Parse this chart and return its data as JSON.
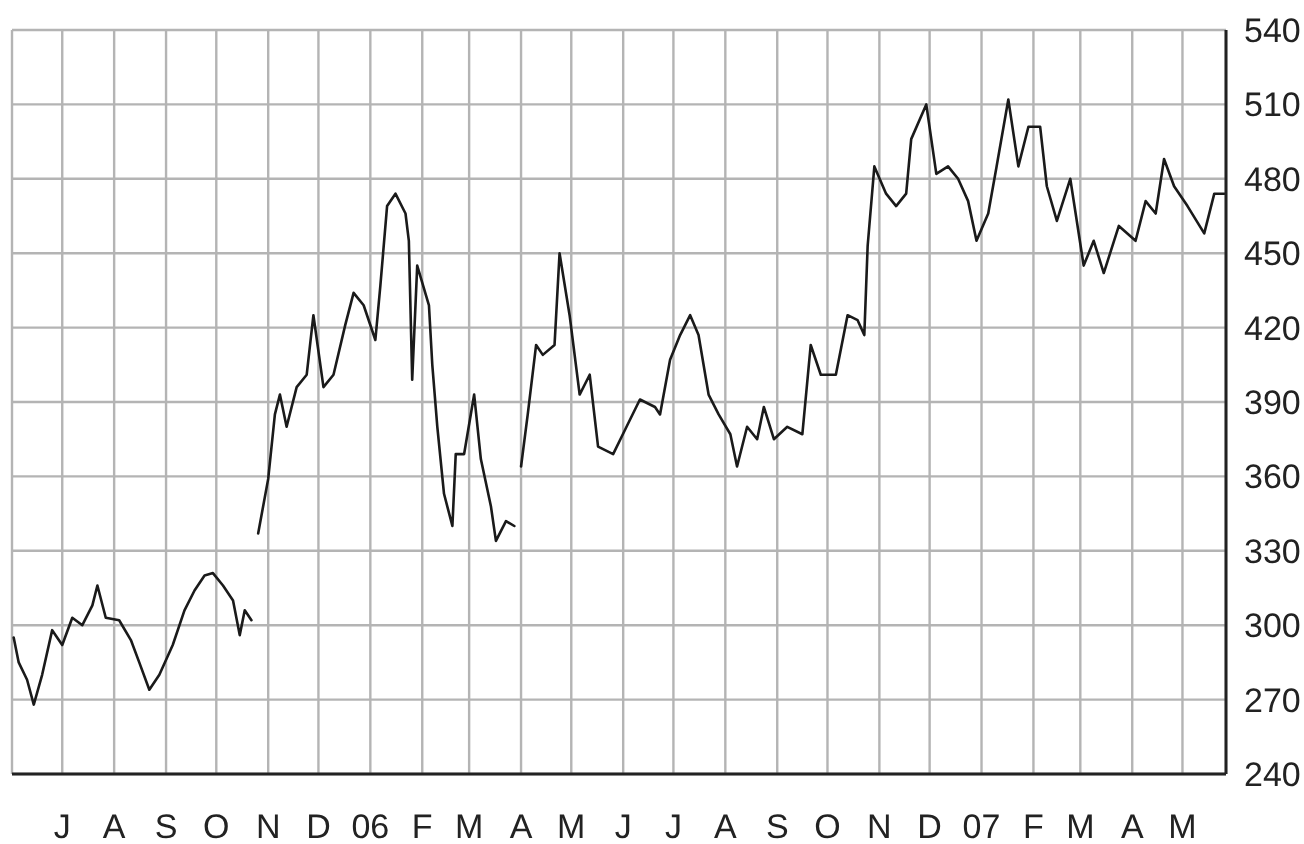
{
  "chart_data": {
    "type": "line",
    "x": [
      "2005-06-02",
      "2005-06-05",
      "2005-06-10",
      "2005-06-14",
      "2005-06-19",
      "2005-06-25",
      "2005-07-01",
      "2005-07-07",
      "2005-07-13",
      "2005-07-19",
      "2005-07-22",
      "2005-07-27",
      "2005-08-04",
      "2005-08-11",
      "2005-08-16",
      "2005-08-22",
      "2005-08-28",
      "2005-09-05",
      "2005-09-12",
      "2005-09-18",
      "2005-09-24",
      "2005-09-29",
      "2005-10-05",
      "2005-10-11",
      "2005-10-15",
      "2005-10-18",
      "2005-10-22",
      "2005-10-24",
      "2005-10-26",
      "2005-11-01",
      "2005-11-05",
      "2005-11-08",
      "2005-11-12",
      "2005-11-18",
      "2005-11-24",
      "2005-11-28",
      "2005-12-04",
      "2005-12-10",
      "2005-12-17",
      "2005-12-22",
      "2005-12-28",
      "2006-01-04",
      "2006-01-07",
      "2006-01-11",
      "2006-01-16",
      "2006-01-22",
      "2006-01-24",
      "2006-01-26",
      "2006-01-29",
      "2006-02-05",
      "2006-02-07",
      "2006-02-10",
      "2006-02-14",
      "2006-02-19",
      "2006-02-21",
      "2006-02-26",
      "2006-03-04",
      "2006-03-08",
      "2006-03-14",
      "2006-03-17",
      "2006-03-23",
      "2006-03-28",
      "2006-03-30",
      "2006-04-01",
      "2006-04-05",
      "2006-04-10",
      "2006-04-14",
      "2006-04-21",
      "2006-04-24",
      "2006-04-30",
      "2006-05-06",
      "2006-05-12",
      "2006-05-17",
      "2006-05-26",
      "2006-06-03",
      "2006-06-11",
      "2006-06-20",
      "2006-06-23",
      "2006-06-29",
      "2006-07-05",
      "2006-07-11",
      "2006-07-16",
      "2006-07-22",
      "2006-07-28",
      "2006-08-04",
      "2006-08-08",
      "2006-08-14",
      "2006-08-20",
      "2006-08-24",
      "2006-08-30",
      "2006-09-07",
      "2006-09-16",
      "2006-09-21",
      "2006-09-27",
      "2006-10-06",
      "2006-10-13",
      "2006-10-19",
      "2006-10-23",
      "2006-10-25",
      "2006-10-29",
      "2006-11-05",
      "2006-11-11",
      "2006-11-17",
      "2006-11-20",
      "2006-11-29",
      "2006-12-05",
      "2006-12-12",
      "2006-12-18",
      "2006-12-24",
      "2006-12-29",
      "2007-01-05",
      "2007-01-10",
      "2007-01-17",
      "2007-01-23",
      "2007-01-29",
      "2007-02-05",
      "2007-02-09",
      "2007-02-15",
      "2007-02-23",
      "2007-03-03",
      "2007-03-09",
      "2007-03-15",
      "2007-03-24",
      "2007-04-03",
      "2007-04-09",
      "2007-04-15",
      "2007-04-20",
      "2007-04-26",
      "2007-05-04",
      "2007-05-14",
      "2007-05-20",
      "2007-05-26"
    ],
    "series": [
      {
        "color": "#1a1a1a",
        "values": [
          295,
          285,
          278,
          268,
          280,
          298,
          292,
          303,
          300,
          308,
          316,
          303,
          302,
          294,
          285,
          274,
          280,
          292,
          306,
          314,
          320,
          321,
          316,
          310,
          296,
          306,
          302,
          null,
          337,
          359,
          385,
          393,
          380,
          396,
          401,
          425,
          396,
          401,
          421,
          434,
          429,
          415,
          437,
          469,
          474,
          466,
          455,
          399,
          445,
          429,
          405,
          380,
          353,
          340,
          369,
          369,
          393,
          367,
          348,
          334,
          342,
          340,
          null,
          364,
          385,
          413,
          409,
          413,
          450,
          425,
          393,
          401,
          372,
          369,
          380,
          391,
          388,
          385,
          407,
          417,
          425,
          417,
          393,
          385,
          377,
          364,
          380,
          375,
          388,
          375,
          380,
          377,
          413,
          401,
          401,
          425,
          423,
          417,
          453,
          485,
          474,
          469,
          474,
          496,
          510,
          482,
          485,
          480,
          471,
          455,
          466,
          485,
          512,
          485,
          501,
          501,
          477,
          463,
          480,
          445,
          455,
          442,
          461,
          455,
          471,
          466,
          488,
          477,
          469,
          458,
          474,
          474
        ]
      }
    ],
    "xlim": [
      "2005-06-01",
      "2007-05-27"
    ],
    "xticks": [
      {
        "value": "2005-07-01",
        "label": "J"
      },
      {
        "value": "2005-08-01",
        "label": "A"
      },
      {
        "value": "2005-09-01",
        "label": "S"
      },
      {
        "value": "2005-10-01",
        "label": "O"
      },
      {
        "value": "2005-11-01",
        "label": "N"
      },
      {
        "value": "2005-12-01",
        "label": "D"
      },
      {
        "value": "2006-01-01",
        "label": "06"
      },
      {
        "value": "2006-02-01",
        "label": "F"
      },
      {
        "value": "2006-03-01",
        "label": "M"
      },
      {
        "value": "2006-04-01",
        "label": "A"
      },
      {
        "value": "2006-05-01",
        "label": "M"
      },
      {
        "value": "2006-06-01",
        "label": "J"
      },
      {
        "value": "2006-07-01",
        "label": "J"
      },
      {
        "value": "2006-08-01",
        "label": "A"
      },
      {
        "value": "2006-09-01",
        "label": "S"
      },
      {
        "value": "2006-10-01",
        "label": "O"
      },
      {
        "value": "2006-11-01",
        "label": "N"
      },
      {
        "value": "2006-12-01",
        "label": "D"
      },
      {
        "value": "2007-01-01",
        "label": "07"
      },
      {
        "value": "2007-02-01",
        "label": "F"
      },
      {
        "value": "2007-03-01",
        "label": "M"
      },
      {
        "value": "2007-04-01",
        "label": "A"
      },
      {
        "value": "2007-05-01",
        "label": "M"
      }
    ],
    "ylim": [
      240,
      540
    ],
    "yticks": [
      240,
      270,
      300,
      330,
      360,
      390,
      420,
      450,
      480,
      510,
      540
    ],
    "grid": true,
    "legend": false,
    "marker": "none",
    "line_style": "solid"
  }
}
